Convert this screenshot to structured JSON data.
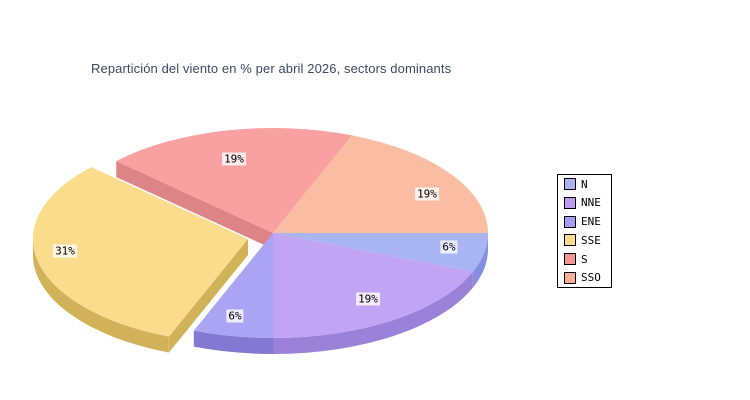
{
  "title": "Repartición del viento en % per abril 2026, sectors dominants",
  "title_color": "#3A4A63",
  "chart_data": {
    "type": "pie",
    "style": "3d-exploded",
    "title": "Repartición del viento en % per abril 2026, sectors dominants",
    "unit": "%",
    "start_angle_deg": 0,
    "direction": "clockwise",
    "legend_position": "right",
    "slices": [
      {
        "label": "N",
        "value": 6,
        "text": "6%",
        "legend_color": "#A9B2F2",
        "top_color": "#A9B5F3",
        "side_color": "#8390E0",
        "exploded": false
      },
      {
        "label": "NNE",
        "value": 19,
        "text": "19%",
        "legend_color": "#BE9CF2",
        "top_color": "#C2A4F4",
        "side_color": "#9A82D8",
        "exploded": false
      },
      {
        "label": "ENE",
        "value": 6,
        "text": "6%",
        "legend_color": "#A49EF2",
        "top_color": "#ABA4F4",
        "side_color": "#8379D2",
        "exploded": false
      },
      {
        "label": "SSE",
        "value": 31,
        "text": "31%",
        "legend_color": "#FADA88",
        "top_color": "#FADC8C",
        "side_color": "#D2B258",
        "exploded": true
      },
      {
        "label": "S",
        "value": 19,
        "text": "19%",
        "legend_color": "#F79495",
        "top_color": "#F9A0A1",
        "side_color": "#DD8487",
        "exploded": false
      },
      {
        "label": "SSO",
        "value": 19,
        "text": "19%",
        "legend_color": "#F9AE96",
        "top_color": "#FBBDA2",
        "side_color": "#E09884",
        "exploded": false
      }
    ]
  }
}
